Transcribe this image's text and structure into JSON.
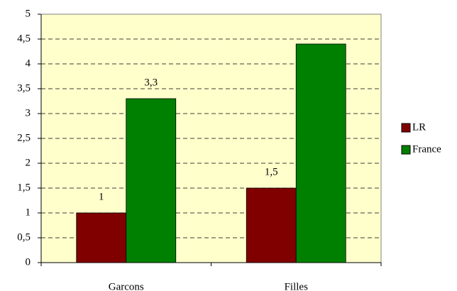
{
  "chart_data": {
    "type": "bar",
    "categories": [
      "Garcons",
      "Filles"
    ],
    "series": [
      {
        "name": "LR",
        "color": "#800000",
        "values": [
          1,
          1.5
        ],
        "value_labels": [
          "1",
          "1,5"
        ]
      },
      {
        "name": "France",
        "color": "#008000",
        "values": [
          3.3,
          4.4
        ],
        "value_labels": [
          "3,3",
          null
        ]
      }
    ],
    "ylim": [
      0,
      5
    ],
    "yticks": [
      0,
      {
        "value": 0.5,
        "label": "0,5"
      },
      1,
      {
        "value": 1.5,
        "label": "1,5"
      },
      2,
      {
        "value": 2.5,
        "label": "2,5"
      },
      3,
      {
        "value": 3.5,
        "label": "3,5"
      },
      4,
      {
        "value": 4.5,
        "label": "4,5"
      },
      5
    ],
    "grid": true,
    "plot_background": "#ffffcc",
    "legend": "right"
  }
}
